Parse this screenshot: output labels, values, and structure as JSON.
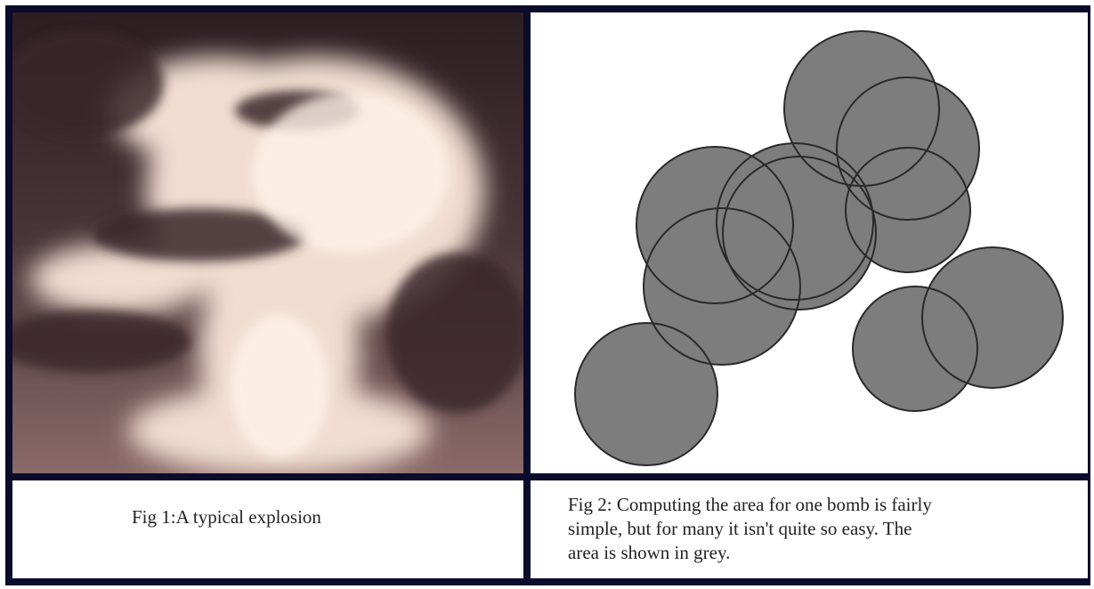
{
  "figures": [
    {
      "caption": "Fig 1:A typical explosion"
    },
    {
      "caption_lines": [
        "Fig 2: Computing the area for one bomb is fairly",
        "simple, but for many it isn't quite so easy. The",
        "area is shown in grey."
      ]
    }
  ]
}
